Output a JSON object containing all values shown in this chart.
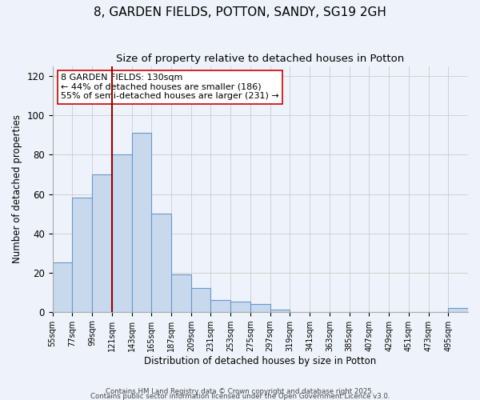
{
  "title": "8, GARDEN FIELDS, POTTON, SANDY, SG19 2GH",
  "subtitle": "Size of property relative to detached houses in Potton",
  "xlabel": "Distribution of detached houses by size in Potton",
  "ylabel": "Number of detached properties",
  "bar_values": [
    25,
    58,
    70,
    80,
    91,
    50,
    19,
    12,
    6,
    5,
    4,
    1,
    0,
    0,
    0,
    0,
    0,
    0,
    0,
    0,
    2
  ],
  "bin_labels": [
    "55sqm",
    "77sqm",
    "99sqm",
    "121sqm",
    "143sqm",
    "165sqm",
    "187sqm",
    "209sqm",
    "231sqm",
    "253sqm",
    "275sqm",
    "297sqm",
    "319sqm",
    "341sqm",
    "363sqm",
    "385sqm",
    "407sqm",
    "429sqm",
    "451sqm",
    "473sqm",
    "495sqm"
  ],
  "bar_color": "#c8d9ee",
  "bar_edge_color": "#6699cc",
  "vline_x": 3.0,
  "vline_color": "#990000",
  "annotation_text": "8 GARDEN FIELDS: 130sqm\n← 44% of detached houses are smaller (186)\n55% of semi-detached houses are larger (231) →",
  "ylim": [
    0,
    125
  ],
  "yticks": [
    0,
    20,
    40,
    60,
    80,
    100,
    120
  ],
  "background_color": "#eef2fa",
  "grid_color": "#cccccc",
  "footer_line1": "Contains HM Land Registry data © Crown copyright and database right 2025.",
  "footer_line2": "Contains public sector information licensed under the Open Government Licence v3.0.",
  "title_fontsize": 11,
  "subtitle_fontsize": 9.5,
  "annotation_fontsize": 8,
  "xlabel_fontsize": 8.5,
  "ylabel_fontsize": 8.5
}
